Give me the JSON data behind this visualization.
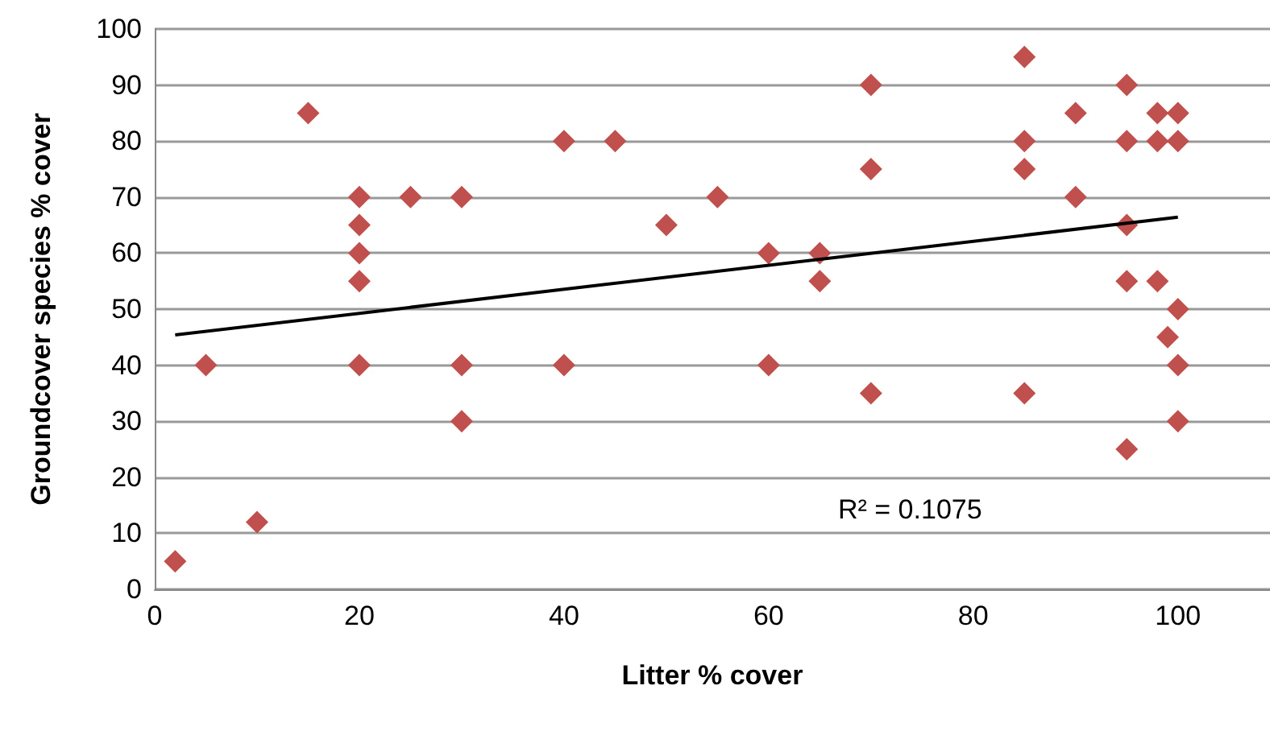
{
  "chart_data": {
    "type": "scatter",
    "xlabel": "Litter % cover",
    "ylabel": "Groundcover species % cover",
    "xlim": [
      0,
      109
    ],
    "xticks": [
      0,
      20,
      40,
      60,
      80,
      100
    ],
    "ylim": [
      0,
      100
    ],
    "yticks": [
      0,
      10,
      20,
      30,
      40,
      50,
      60,
      70,
      80,
      90,
      100
    ],
    "grid": "y",
    "marker": "diamond",
    "annotations": [
      "R² = 0.1075"
    ],
    "series": [
      {
        "color": "#c0504d",
        "x": [
          2,
          5,
          10,
          15,
          20,
          20,
          20,
          20,
          20,
          25,
          30,
          30,
          30,
          40,
          40,
          45,
          50,
          55,
          60,
          60,
          65,
          65,
          70,
          70,
          70,
          85,
          85,
          85,
          85,
          90,
          90,
          95,
          95,
          95,
          95,
          95,
          98,
          98,
          98,
          99,
          100,
          100,
          100,
          100,
          100
        ],
        "values": [
          5,
          40,
          12,
          85,
          70,
          65,
          60,
          55,
          40,
          70,
          70,
          40,
          30,
          80,
          40,
          80,
          65,
          70,
          60,
          40,
          60,
          55,
          90,
          75,
          35,
          95,
          80,
          75,
          35,
          85,
          70,
          90,
          80,
          65,
          55,
          25,
          85,
          80,
          55,
          45,
          85,
          80,
          50,
          40,
          30
        ]
      },
      {
        "type": "line",
        "color": "#000000",
        "marker": "none",
        "x": [
          2,
          100
        ],
        "values": [
          45.4,
          66.4
        ]
      }
    ]
  }
}
